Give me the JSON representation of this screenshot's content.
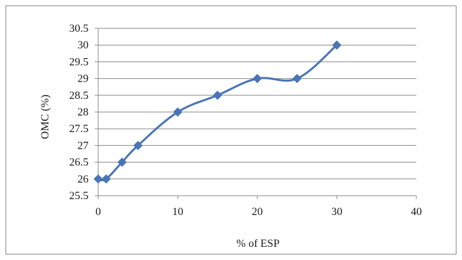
{
  "chart_data": {
    "type": "line",
    "title": "",
    "xlabel": "% of ESP",
    "ylabel": "OMC (%)",
    "xlim": [
      0,
      40
    ],
    "ylim": [
      25.5,
      30.5
    ],
    "xticks": [
      0,
      10,
      20,
      30,
      40
    ],
    "yticks": [
      25.5,
      26,
      26.5,
      27,
      27.5,
      28,
      28.5,
      29,
      29.5,
      30,
      30.5
    ],
    "grid": "horizontal",
    "legend": "none",
    "marker": "diamond",
    "color": "#4a75b5",
    "series": [
      {
        "x": [
          0,
          1,
          3,
          5,
          10,
          15,
          20,
          25,
          30
        ],
        "y": [
          26,
          26,
          26.5,
          27,
          28,
          28.5,
          29,
          29,
          30
        ]
      }
    ]
  }
}
